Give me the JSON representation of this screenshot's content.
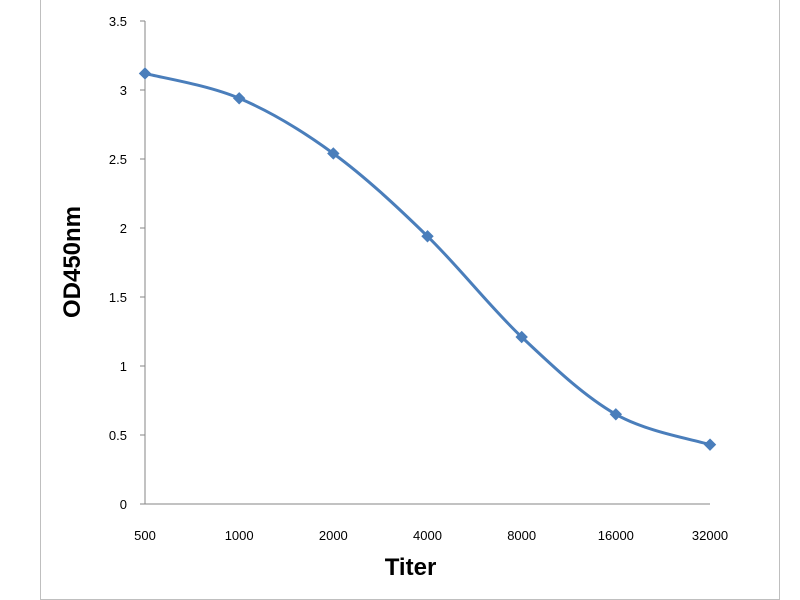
{
  "chart_data": {
    "type": "line",
    "title": "",
    "xlabel": "Titer",
    "ylabel": "OD450nm",
    "categories": [
      "500",
      "1000",
      "2000",
      "4000",
      "8000",
      "16000",
      "32000"
    ],
    "series": [
      {
        "values": [
          3.12,
          2.94,
          2.54,
          1.94,
          1.21,
          0.65,
          0.43
        ],
        "color": "#4a7ebb",
        "marker": "diamond",
        "smooth": true
      }
    ],
    "ylim": [
      0,
      3.5
    ],
    "yticks": [
      "0",
      "0.5",
      "1",
      "1.5",
      "2",
      "2.5",
      "3",
      "3.5"
    ],
    "grid": false,
    "legend": "none"
  }
}
